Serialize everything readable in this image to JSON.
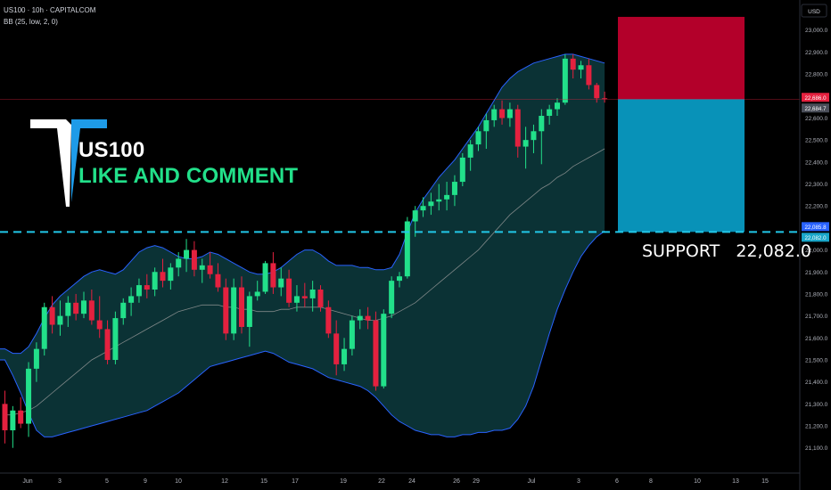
{
  "header": {
    "symbol_line": "US100 · 10h · CAPITALCOM",
    "indicator_line": "BB (25, low, 2, 0)"
  },
  "overlay": {
    "title": "US100",
    "subtitle": "LIKE AND COMMENT",
    "support_text": "SUPPORT   22,082.0"
  },
  "price_badges": {
    "currency": "USD",
    "last_price": "22,686.0",
    "close_price": "22,684.7",
    "bb_lower": "22,085.8",
    "support": "22,082.0"
  },
  "colors": {
    "up": "#22e08a",
    "down": "#e4213f",
    "band": "#2962ff",
    "band_fill": "#0d3b3e",
    "basis": "#9e9e9e",
    "support_line": "#22c7e8",
    "stop_zone": "#b3002a",
    "target_zone": "#0892b8"
  },
  "chart_data": {
    "type": "candlestick",
    "title": "US100 · 10h · CAPITALCOM",
    "currency": "USD",
    "ylim": [
      21030,
      23080
    ],
    "y_ticks": [
      21100,
      21200,
      21300,
      21400,
      21500,
      21600,
      21700,
      21800,
      21900,
      22000,
      22100,
      22200,
      22300,
      22400,
      22500,
      22600,
      22700,
      22800,
      22900,
      23000
    ],
    "x_tick_labels": [
      "Jun",
      "3",
      "5",
      "9",
      "10",
      "12",
      "15",
      "17",
      "19",
      "22",
      "24",
      "26",
      "29",
      "Jul",
      "3",
      "6",
      "8",
      "10",
      "13",
      "15"
    ],
    "candles": [
      {
        "o": 21300,
        "h": 21360,
        "l": 21120,
        "c": 21180
      },
      {
        "o": 21180,
        "h": 21290,
        "l": 21100,
        "c": 21270
      },
      {
        "o": 21270,
        "h": 21330,
        "l": 21190,
        "c": 21210
      },
      {
        "o": 21210,
        "h": 21490,
        "l": 21150,
        "c": 21460
      },
      {
        "o": 21460,
        "h": 21580,
        "l": 21400,
        "c": 21550
      },
      {
        "o": 21550,
        "h": 21760,
        "l": 21520,
        "c": 21740
      },
      {
        "o": 21740,
        "h": 21790,
        "l": 21620,
        "c": 21660
      },
      {
        "o": 21660,
        "h": 21770,
        "l": 21610,
        "c": 21700
      },
      {
        "o": 21700,
        "h": 21790,
        "l": 21650,
        "c": 21760
      },
      {
        "o": 21760,
        "h": 21800,
        "l": 21680,
        "c": 21710
      },
      {
        "o": 21710,
        "h": 21810,
        "l": 21690,
        "c": 21770
      },
      {
        "o": 21770,
        "h": 21820,
        "l": 21660,
        "c": 21680
      },
      {
        "o": 21680,
        "h": 21790,
        "l": 21600,
        "c": 21640
      },
      {
        "o": 21640,
        "h": 21680,
        "l": 21480,
        "c": 21500
      },
      {
        "o": 21500,
        "h": 21720,
        "l": 21480,
        "c": 21690
      },
      {
        "o": 21690,
        "h": 21780,
        "l": 21660,
        "c": 21760
      },
      {
        "o": 21760,
        "h": 21830,
        "l": 21700,
        "c": 21790
      },
      {
        "o": 21790,
        "h": 21870,
        "l": 21760,
        "c": 21840
      },
      {
        "o": 21840,
        "h": 21890,
        "l": 21780,
        "c": 21820
      },
      {
        "o": 21820,
        "h": 21920,
        "l": 21790,
        "c": 21900
      },
      {
        "o": 21900,
        "h": 21960,
        "l": 21830,
        "c": 21860
      },
      {
        "o": 21860,
        "h": 21940,
        "l": 21820,
        "c": 21920
      },
      {
        "o": 21920,
        "h": 21990,
        "l": 21880,
        "c": 21960
      },
      {
        "o": 21960,
        "h": 22050,
        "l": 21900,
        "c": 22000
      },
      {
        "o": 22000,
        "h": 22040,
        "l": 21880,
        "c": 21910
      },
      {
        "o": 21910,
        "h": 21960,
        "l": 21850,
        "c": 21930
      },
      {
        "o": 21930,
        "h": 21990,
        "l": 21870,
        "c": 21890
      },
      {
        "o": 21890,
        "h": 21940,
        "l": 21810,
        "c": 21830
      },
      {
        "o": 21830,
        "h": 21870,
        "l": 21590,
        "c": 21620
      },
      {
        "o": 21620,
        "h": 21870,
        "l": 21590,
        "c": 21830
      },
      {
        "o": 21830,
        "h": 21880,
        "l": 21620,
        "c": 21650
      },
      {
        "o": 21650,
        "h": 21810,
        "l": 21560,
        "c": 21790
      },
      {
        "o": 21790,
        "h": 21860,
        "l": 21770,
        "c": 21810
      },
      {
        "o": 21810,
        "h": 21950,
        "l": 21800,
        "c": 21940
      },
      {
        "o": 21940,
        "h": 21990,
        "l": 21800,
        "c": 21830
      },
      {
        "o": 21830,
        "h": 21920,
        "l": 21790,
        "c": 21870
      },
      {
        "o": 21870,
        "h": 21910,
        "l": 21740,
        "c": 21760
      },
      {
        "o": 21760,
        "h": 21840,
        "l": 21720,
        "c": 21790
      },
      {
        "o": 21790,
        "h": 21850,
        "l": 21740,
        "c": 21780
      },
      {
        "o": 21780,
        "h": 21860,
        "l": 21720,
        "c": 21820
      },
      {
        "o": 21820,
        "h": 21840,
        "l": 21720,
        "c": 21740
      },
      {
        "o": 21740,
        "h": 21770,
        "l": 21600,
        "c": 21620
      },
      {
        "o": 21620,
        "h": 21680,
        "l": 21430,
        "c": 21480
      },
      {
        "o": 21480,
        "h": 21600,
        "l": 21450,
        "c": 21550
      },
      {
        "o": 21550,
        "h": 21700,
        "l": 21520,
        "c": 21680
      },
      {
        "o": 21680,
        "h": 21730,
        "l": 21640,
        "c": 21700
      },
      {
        "o": 21700,
        "h": 21740,
        "l": 21640,
        "c": 21680
      },
      {
        "o": 21680,
        "h": 21720,
        "l": 21360,
        "c": 21380
      },
      {
        "o": 21380,
        "h": 21730,
        "l": 21370,
        "c": 21710
      },
      {
        "o": 21710,
        "h": 21880,
        "l": 21690,
        "c": 21860
      },
      {
        "o": 21860,
        "h": 21900,
        "l": 21830,
        "c": 21880
      },
      {
        "o": 21880,
        "h": 22150,
        "l": 21870,
        "c": 22130
      },
      {
        "o": 22130,
        "h": 22200,
        "l": 22060,
        "c": 22180
      },
      {
        "o": 22180,
        "h": 22240,
        "l": 22150,
        "c": 22200
      },
      {
        "o": 22200,
        "h": 22260,
        "l": 22160,
        "c": 22220
      },
      {
        "o": 22220,
        "h": 22300,
        "l": 22180,
        "c": 22230
      },
      {
        "o": 22230,
        "h": 22310,
        "l": 22180,
        "c": 22250
      },
      {
        "o": 22250,
        "h": 22340,
        "l": 22200,
        "c": 22310
      },
      {
        "o": 22310,
        "h": 22440,
        "l": 22290,
        "c": 22420
      },
      {
        "o": 22420,
        "h": 22500,
        "l": 22360,
        "c": 22480
      },
      {
        "o": 22480,
        "h": 22560,
        "l": 22450,
        "c": 22540
      },
      {
        "o": 22540,
        "h": 22620,
        "l": 22460,
        "c": 22590
      },
      {
        "o": 22590,
        "h": 22660,
        "l": 22560,
        "c": 22640
      },
      {
        "o": 22640,
        "h": 22680,
        "l": 22570,
        "c": 22600
      },
      {
        "o": 22600,
        "h": 22670,
        "l": 22560,
        "c": 22640
      },
      {
        "o": 22640,
        "h": 22660,
        "l": 22420,
        "c": 22470
      },
      {
        "o": 22470,
        "h": 22560,
        "l": 22370,
        "c": 22500
      },
      {
        "o": 22500,
        "h": 22570,
        "l": 22440,
        "c": 22540
      },
      {
        "o": 22540,
        "h": 22640,
        "l": 22390,
        "c": 22610
      },
      {
        "o": 22610,
        "h": 22660,
        "l": 22570,
        "c": 22640
      },
      {
        "o": 22640,
        "h": 22690,
        "l": 22610,
        "c": 22670
      },
      {
        "o": 22670,
        "h": 22890,
        "l": 22660,
        "c": 22870
      },
      {
        "o": 22870,
        "h": 22890,
        "l": 22780,
        "c": 22820
      },
      {
        "o": 22820,
        "h": 22860,
        "l": 22780,
        "c": 22840
      },
      {
        "o": 22840,
        "h": 22870,
        "l": 22730,
        "c": 22750
      },
      {
        "o": 22750,
        "h": 22760,
        "l": 22670,
        "c": 22690
      },
      {
        "o": 22690,
        "h": 22720,
        "l": 22670,
        "c": 22685
      }
    ],
    "bollinger": {
      "period": 25,
      "upper": [
        21550,
        21530,
        21530,
        21560,
        21620,
        21690,
        21750,
        21790,
        21820,
        21850,
        21880,
        21900,
        21910,
        21900,
        21890,
        21910,
        21950,
        21990,
        22010,
        22020,
        22010,
        21990,
        21970,
        21960,
        21960,
        21970,
        21990,
        21980,
        21960,
        21940,
        21920,
        21900,
        21890,
        21890,
        21900,
        21920,
        21950,
        21980,
        22000,
        22000,
        21980,
        21950,
        21930,
        21930,
        21930,
        21920,
        21920,
        21910,
        21910,
        21920,
        21980,
        22080,
        22170,
        22230,
        22280,
        22330,
        22370,
        22410,
        22460,
        22510,
        22560,
        22620,
        22680,
        22740,
        22780,
        22810,
        22830,
        22850,
        22860,
        22870,
        22880,
        22890,
        22890,
        22880,
        22870,
        22860,
        22850
      ],
      "basis": [
        21250,
        21250,
        21260,
        21270,
        21290,
        21320,
        21350,
        21380,
        21410,
        21440,
        21470,
        21500,
        21520,
        21540,
        21560,
        21580,
        21600,
        21620,
        21640,
        21660,
        21680,
        21700,
        21720,
        21730,
        21740,
        21750,
        21750,
        21750,
        21740,
        21740,
        21730,
        21730,
        21720,
        21720,
        21720,
        21730,
        21730,
        21740,
        21740,
        21740,
        21740,
        21730,
        21720,
        21710,
        21700,
        21690,
        21680,
        21680,
        21690,
        21700,
        21720,
        21740,
        21760,
        21790,
        21820,
        21850,
        21880,
        21910,
        21940,
        21970,
        22000,
        22040,
        22080,
        22120,
        22160,
        22190,
        22220,
        22250,
        22280,
        22300,
        22330,
        22350,
        22380,
        22400,
        22420,
        22440,
        22460
      ],
      "lower": [
        21500,
        21430,
        21350,
        21260,
        21180,
        21150,
        21150,
        21160,
        21170,
        21180,
        21190,
        21200,
        21210,
        21220,
        21230,
        21240,
        21250,
        21260,
        21270,
        21290,
        21310,
        21330,
        21350,
        21380,
        21410,
        21440,
        21470,
        21480,
        21490,
        21500,
        21510,
        21520,
        21530,
        21540,
        21530,
        21510,
        21490,
        21480,
        21470,
        21460,
        21440,
        21420,
        21410,
        21400,
        21390,
        21380,
        21360,
        21330,
        21290,
        21250,
        21220,
        21200,
        21180,
        21170,
        21160,
        21160,
        21150,
        21150,
        21160,
        21160,
        21170,
        21170,
        21180,
        21180,
        21190,
        21230,
        21290,
        21380,
        21500,
        21620,
        21730,
        21820,
        21900,
        21970,
        22020,
        22060,
        22086
      ]
    },
    "support_level": 22082.0,
    "last_price": 22686.0,
    "position": {
      "entry": 22686.0,
      "stop": 23060,
      "target": 22082.0
    }
  }
}
